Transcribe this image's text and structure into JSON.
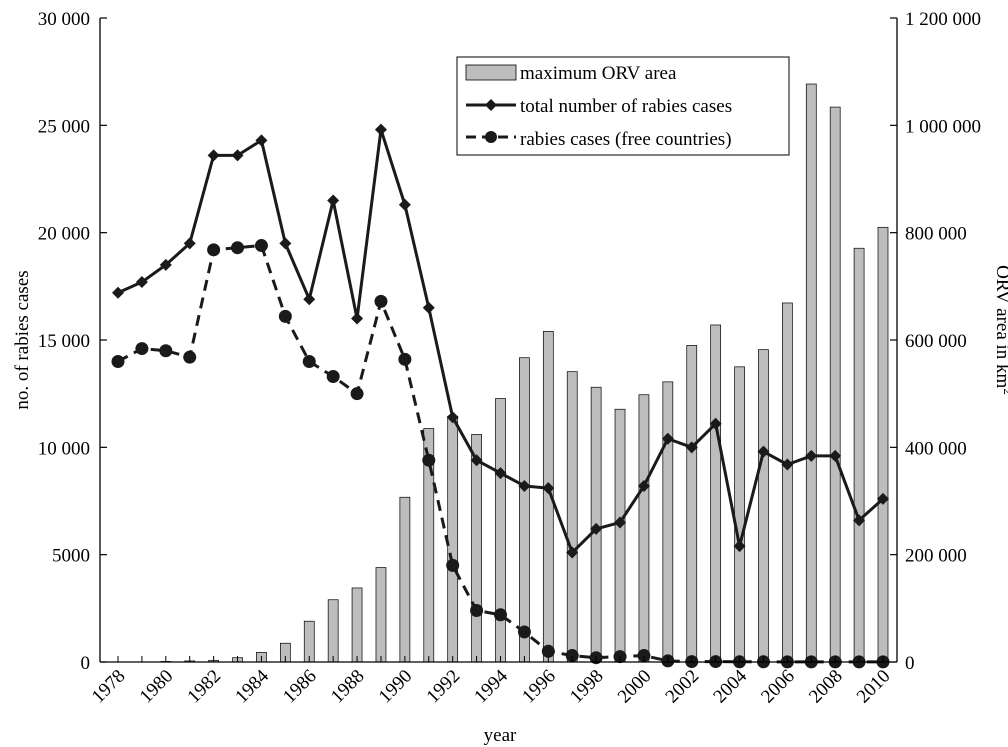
{
  "chart_data": {
    "type": "bar",
    "title": "",
    "xlabel": "year",
    "ylabel": "no. of rabies cases",
    "ylabel_right": "ORV area in km",
    "ylabel_right_superscript": "2",
    "ylim": [
      0,
      30000
    ],
    "ylim_right": [
      0,
      1200000
    ],
    "y_ticks": [
      "0",
      "5000",
      "10 000",
      "15 000",
      "20 000",
      "25 000",
      "30 000"
    ],
    "y_right_ticks": [
      "0",
      "200 000",
      "400 000",
      "600 000",
      "800 000",
      "1 000 000",
      "1 200 000"
    ],
    "x_tick_labels": [
      "1978",
      "1980",
      "1982",
      "1984",
      "1986",
      "1988",
      "1990",
      "1992",
      "1994",
      "1996",
      "1998",
      "2000",
      "2002",
      "2004",
      "2006",
      "2008",
      "2010"
    ],
    "x": [
      1978,
      1979,
      1980,
      1981,
      1982,
      1983,
      1984,
      1985,
      1986,
      1987,
      1988,
      1989,
      1990,
      1991,
      1992,
      1993,
      1994,
      1995,
      1996,
      1997,
      1998,
      1999,
      2000,
      2001,
      2002,
      2003,
      2004,
      2005,
      2006,
      2007,
      2008,
      2009,
      2010
    ],
    "grid": false,
    "legend_position": "top-right",
    "series": [
      {
        "name": "maximum ORV area",
        "kind": "bar",
        "axis": "right",
        "color": "#bdbdbd",
        "values": [
          0,
          0,
          1000,
          2000,
          3000,
          8000,
          18000,
          35000,
          76000,
          116000,
          138000,
          176000,
          307000,
          435000,
          458000,
          424000,
          491000,
          567000,
          616000,
          541000,
          512000,
          471000,
          498000,
          522000,
          590000,
          628000,
          550000,
          582000,
          669000,
          1077000,
          1034000,
          771000,
          810000
        ]
      },
      {
        "name": "total number of rabies cases",
        "kind": "line",
        "axis": "left",
        "style": "solid",
        "marker": "diamond",
        "color": "#1a1a1a",
        "values": [
          17200,
          17700,
          18500,
          19500,
          23600,
          23600,
          24300,
          19500,
          16900,
          21500,
          16000,
          24800,
          21300,
          16500,
          11400,
          9400,
          8800,
          8200,
          8100,
          5100,
          6200,
          6500,
          8200,
          10400,
          10000,
          11100,
          5400,
          9800,
          9200,
          9600,
          9600,
          6600,
          7600
        ]
      },
      {
        "name": "rabies cases (free countries)",
        "kind": "line",
        "axis": "left",
        "style": "dashed",
        "marker": "circle",
        "color": "#1a1a1a",
        "values": [
          14000,
          14600,
          14500,
          14200,
          19200,
          19300,
          19400,
          16100,
          14000,
          13300,
          12500,
          16800,
          14100,
          9400,
          4500,
          2400,
          2200,
          1400,
          500,
          300,
          200,
          250,
          300,
          50,
          20,
          20,
          10,
          10,
          5,
          5,
          5,
          5,
          5
        ]
      }
    ]
  }
}
